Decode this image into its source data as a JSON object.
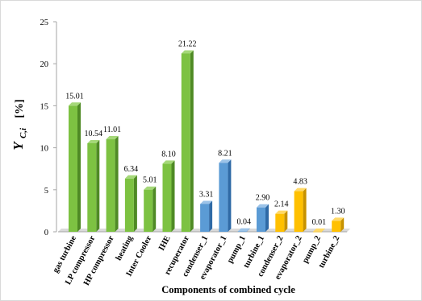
{
  "chart_data": {
    "type": "bar",
    "xlabel": "Components of combined cycle",
    "ylabel_main": "Y",
    "ylabel_sub": "C,i",
    "ylabel_unit": "[%]",
    "ylim": [
      0,
      25
    ],
    "yticks": [
      0,
      5,
      10,
      15,
      20,
      25
    ],
    "grid": false,
    "legend": "none",
    "categories": [
      "gas turbine",
      "LP compressor",
      "HP compressor",
      "heating",
      "Inter Cooler",
      "IHE",
      "recuperator",
      "condenser_1",
      "evaporator_1",
      "pump_1",
      "turbine_1",
      "condenser_2",
      "evaporator_2",
      "pump_2",
      "turbine_2"
    ],
    "values": [
      15.01,
      10.54,
      11.01,
      6.34,
      5.01,
      8.1,
      21.22,
      3.31,
      8.21,
      0.04,
      2.9,
      2.14,
      4.83,
      0.01,
      1.3
    ],
    "value_labels": [
      "15.01",
      "10.54",
      "11.01",
      "6.34",
      "5.01",
      "8.10",
      "21.22",
      "3.31",
      "8.21",
      "0.04",
      "2.90",
      "2.14",
      "4.83",
      "0.01",
      "1.30"
    ],
    "bar_groups": [
      "green",
      "green",
      "green",
      "green",
      "green",
      "green",
      "green",
      "blue",
      "blue",
      "blue",
      "blue",
      "yellow",
      "yellow",
      "yellow",
      "yellow"
    ],
    "colors": {
      "green": {
        "front": "#7dc242",
        "side": "#4f8a25",
        "top": "#a5d879"
      },
      "blue": {
        "front": "#5b9bd5",
        "side": "#2f6aa6",
        "top": "#9cc3e8"
      },
      "yellow": {
        "front": "#ffc000",
        "side": "#c79200",
        "top": "#ffd966"
      },
      "floor": "#d9d9d9",
      "axis": "#a6a6a6"
    }
  }
}
